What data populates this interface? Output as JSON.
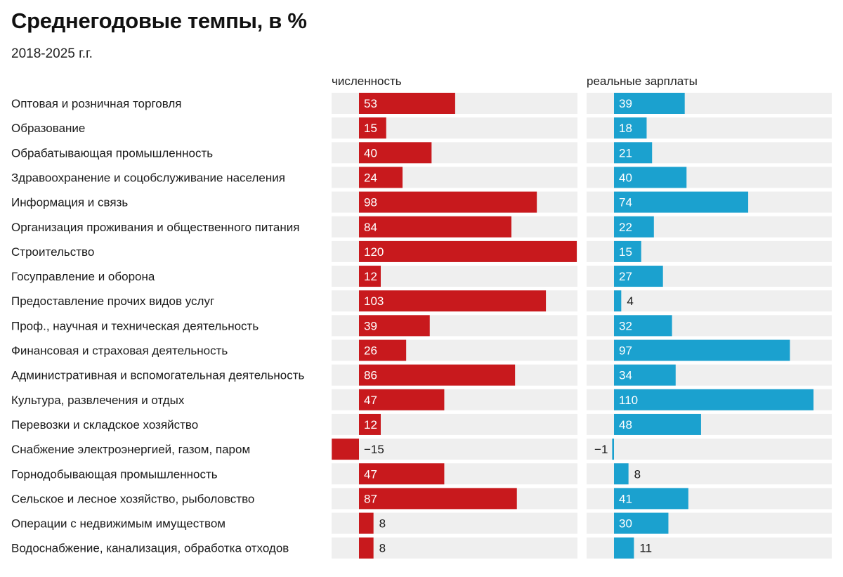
{
  "title": "Среднегодовые темпы, в %",
  "subtitle": "2018-2025 г.г.",
  "chart_data": {
    "type": "bar",
    "orientation": "horizontal",
    "title": "Среднегодовые темпы, в %",
    "subtitle": "2018-2025 г.г.",
    "categories": [
      "Оптовая и розничная торговля",
      "Образование",
      "Обрабатывающая промышленность",
      "Здравоохранение и соцобслуживание населения",
      "Информация и связь",
      "Организация проживания и общественного питания",
      "Строительство",
      "Госуправление и оборона",
      "Предоставление прочих видов услуг",
      "Проф., научная и техническая деятельность",
      "Финансовая и страховая деятельность",
      "Административная и вспомогательная деятельность",
      "Культура, развлечения и отдых",
      "Перевозки и складское хозяйство",
      "Снабжение электроэнергией, газом, паром",
      "Горнодобывающая промышленность",
      "Сельское и лесное хозяйство, рыболовство",
      "Операции с недвижимым имуществом",
      "Водоснабжение, канализация, обработка отходов"
    ],
    "series": [
      {
        "name": "численность",
        "color": "#c8191d",
        "values": [
          53,
          15,
          40,
          24,
          98,
          84,
          120,
          12,
          103,
          39,
          26,
          86,
          47,
          12,
          -15,
          47,
          87,
          8,
          8
        ],
        "labels": [
          "53",
          "15",
          "40",
          "24",
          "98",
          "84",
          "120",
          "12",
          "103",
          "39",
          "26",
          "86",
          "47",
          "12",
          "−15",
          "47",
          "87",
          "8",
          "8"
        ]
      },
      {
        "name": "реальные зарплаты",
        "color": "#1ba1cf",
        "values": [
          39,
          18,
          21,
          40,
          74,
          22,
          15,
          27,
          4,
          32,
          97,
          34,
          110,
          48,
          -1,
          8,
          41,
          30,
          11
        ],
        "labels": [
          "39",
          "18",
          "21",
          "40",
          "74",
          "22",
          "15",
          "27",
          "4",
          "32",
          "97",
          "34",
          "110",
          "48",
          "−1",
          "8",
          "41",
          "30",
          "11"
        ]
      }
    ],
    "xlim": [
      -15,
      120
    ],
    "background_color": "#efefef",
    "legend": "column headers",
    "grid": false
  }
}
